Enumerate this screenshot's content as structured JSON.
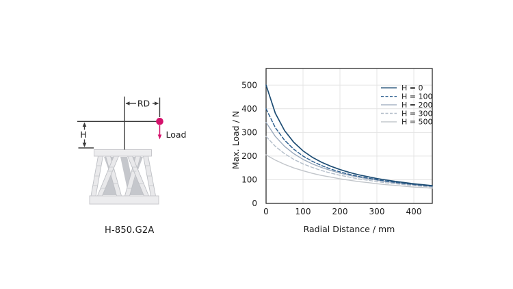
{
  "figure": {
    "background": "#ffffff",
    "text_color": "#1a1a1a",
    "dim_line_color": "#3b3b3b"
  },
  "diagram": {
    "model_label": "H-850.G2A",
    "rd_label": "RD",
    "h_label": "H",
    "load_label": "Load",
    "accent_color": "#d4116b",
    "hexapod_fill": "#ececee",
    "hexapod_shadow": "#c5c7cc"
  },
  "chart_data": {
    "type": "line",
    "title": "",
    "xlabel": "Radial Distance / mm",
    "ylabel": "Max. Load / N",
    "xlim": [
      0,
      450
    ],
    "ylim": [
      0,
      570
    ],
    "x_ticks": [
      0,
      100,
      200,
      300,
      400
    ],
    "y_ticks": [
      0,
      100,
      200,
      300,
      400,
      500
    ],
    "grid": true,
    "grid_color": "#e4e4e4",
    "border_color": "#1a1a1a",
    "legend_position": "top-right",
    "x": [
      0,
      25,
      50,
      75,
      100,
      125,
      150,
      175,
      200,
      225,
      250,
      275,
      300,
      325,
      350,
      375,
      400,
      425,
      450
    ],
    "series": [
      {
        "name": "H = 0",
        "color": "#1e4d74",
        "dash": "solid",
        "width": 1.7,
        "values": [
          500,
          381,
          308,
          258,
          222,
          195,
          174,
          157,
          143,
          131,
          121,
          113,
          105,
          99,
          93,
          88,
          83,
          79,
          75
        ]
      },
      {
        "name": "H = 100",
        "color": "#2f6090",
        "dash": "dashed",
        "width": 1.5,
        "values": [
          400,
          320,
          267,
          229,
          200,
          178,
          160,
          145,
          133,
          123,
          114,
          107,
          100,
          94,
          89,
          84,
          80,
          76,
          73
        ]
      },
      {
        "name": "H = 200",
        "color": "#9aa9bc",
        "dash": "solid",
        "width": 1.4,
        "values": [
          342,
          283,
          241,
          210,
          186,
          167,
          152,
          139,
          128,
          119,
          111,
          104,
          98,
          92,
          87,
          83,
          79,
          75,
          72
        ]
      },
      {
        "name": "H = 300",
        "color": "#b2bcc8",
        "dash": "dashed",
        "width": 1.4,
        "values": [
          283,
          241,
          210,
          186,
          167,
          152,
          139,
          128,
          119,
          111,
          104,
          98,
          92,
          87,
          83,
          79,
          75,
          72,
          69
        ]
      },
      {
        "name": "H = 500",
        "color": "#c1c5ca",
        "dash": "solid",
        "width": 1.4,
        "values": [
          205,
          183,
          165,
          150,
          138,
          127,
          118,
          111,
          104,
          98,
          92,
          88,
          83,
          79,
          76,
          72,
          69,
          67,
          64
        ]
      }
    ]
  }
}
